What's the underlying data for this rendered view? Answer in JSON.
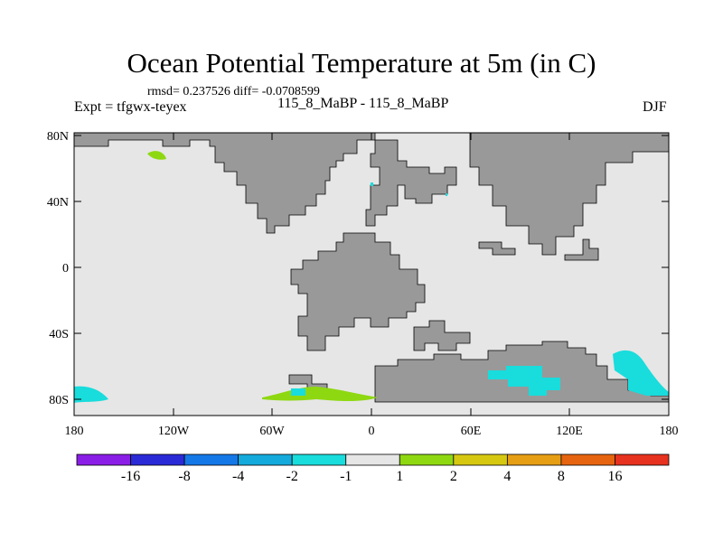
{
  "title": "Ocean Potential Temperature at 5m (in C)",
  "stats": "rmsd= 0.237526 diff= -0.0708599",
  "experiment": "Expt = tfgwx-teyex",
  "comparison": "115_8_MaBP - 115_8_MaBP",
  "season": "DJF",
  "lat_labels": [
    "80N",
    "40N",
    "0",
    "40S",
    "80S"
  ],
  "lon_labels": [
    "180",
    "120W",
    "60W",
    "0",
    "60E",
    "120E",
    "180"
  ],
  "colors": {
    "ocean_background": "#e6e6e6",
    "land": "#999999",
    "anomaly_neg_small": "#19dcdc",
    "anomaly_pos_small": "#8ed811"
  },
  "colorbar": {
    "colors": [
      "#8a1ee6",
      "#2a2ad6",
      "#1478e6",
      "#14aadc",
      "#19dcdc",
      "#e6e6e6",
      "#8ed811",
      "#d6c811",
      "#e69e14",
      "#e6640f",
      "#e6321e"
    ],
    "labels": [
      "-16",
      "-8",
      "-4",
      "-2",
      "-1",
      "1",
      "2",
      "4",
      "8",
      "16"
    ]
  }
}
